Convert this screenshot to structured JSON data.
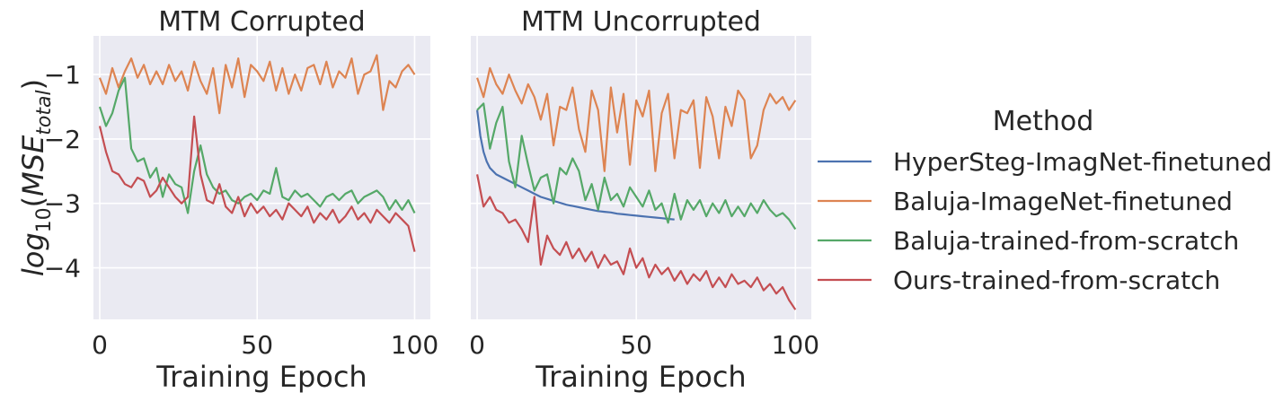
{
  "colors": {
    "HyperSteg-ImagNet-finetuned": "#4c72b0",
    "Baluja-ImageNet-finetuned": "#dd8452",
    "Baluja-trained-from-scratch": "#55a868",
    "Ours-trained-from-scratch": "#c44e52",
    "panel_bg": "#eaeaf2",
    "grid": "#ffffff",
    "text": "#262626"
  },
  "legend": {
    "title": "Method",
    "placement": "right",
    "entries": [
      "HyperSteg-ImagNet-finetuned",
      "Baluja-ImageNet-finetuned",
      "Baluja-trained-from-scratch",
      "Ours-trained-from-scratch"
    ]
  },
  "chart_data": [
    {
      "type": "line",
      "title": "MTM Corrupted",
      "xlabel": "Training Epoch",
      "ylabel": "log10(MSE_total)",
      "xlim": [
        -2,
        105
      ],
      "ylim": [
        -4.8,
        -0.4
      ],
      "xticks": [
        0,
        50,
        100
      ],
      "yticks": [
        -1,
        -2,
        -3,
        -4
      ],
      "grid": true,
      "series": [
        {
          "name": "Baluja-ImageNet-finetuned",
          "x": [
            0,
            2,
            4,
            6,
            8,
            10,
            12,
            14,
            16,
            18,
            20,
            22,
            24,
            26,
            28,
            30,
            32,
            34,
            36,
            38,
            40,
            42,
            44,
            46,
            48,
            50,
            52,
            54,
            56,
            58,
            60,
            62,
            64,
            66,
            68,
            70,
            72,
            74,
            76,
            78,
            80,
            82,
            84,
            86,
            88,
            90,
            92,
            94,
            96,
            98,
            100
          ],
          "y": [
            -1.05,
            -1.3,
            -0.9,
            -1.2,
            -0.95,
            -0.75,
            -1.05,
            -0.85,
            -1.15,
            -0.95,
            -1.15,
            -0.85,
            -1.1,
            -0.95,
            -1.25,
            -0.8,
            -1.1,
            -1.3,
            -0.9,
            -1.6,
            -0.85,
            -1.2,
            -0.75,
            -1.35,
            -0.85,
            -0.95,
            -1.1,
            -0.8,
            -1.25,
            -0.9,
            -1.3,
            -1.0,
            -1.25,
            -0.9,
            -0.85,
            -1.15,
            -0.8,
            -1.2,
            -0.95,
            -1.05,
            -0.75,
            -1.3,
            -1.0,
            -0.95,
            -0.7,
            -1.55,
            -1.1,
            -1.2,
            -0.95,
            -0.85,
            -1.0
          ]
        },
        {
          "name": "Baluja-trained-from-scratch",
          "x": [
            0,
            2,
            4,
            6,
            8,
            10,
            12,
            14,
            16,
            18,
            20,
            22,
            24,
            26,
            28,
            30,
            32,
            34,
            36,
            38,
            40,
            42,
            44,
            46,
            48,
            50,
            52,
            54,
            56,
            58,
            60,
            62,
            64,
            66,
            68,
            70,
            72,
            74,
            76,
            78,
            80,
            82,
            84,
            86,
            88,
            90,
            92,
            94,
            96,
            98,
            100
          ],
          "y": [
            -1.5,
            -1.8,
            -1.6,
            -1.25,
            -1.05,
            -2.15,
            -2.35,
            -2.3,
            -2.6,
            -2.45,
            -2.9,
            -2.55,
            -2.7,
            -2.75,
            -3.15,
            -2.5,
            -2.1,
            -2.55,
            -2.75,
            -2.85,
            -2.8,
            -2.95,
            -3.0,
            -2.9,
            -2.85,
            -2.95,
            -2.8,
            -2.85,
            -2.45,
            -2.9,
            -2.95,
            -2.8,
            -2.9,
            -2.85,
            -2.95,
            -3.05,
            -2.9,
            -2.85,
            -2.95,
            -2.85,
            -2.8,
            -3.0,
            -2.9,
            -2.85,
            -2.8,
            -2.9,
            -3.1,
            -2.95,
            -3.1,
            -2.95,
            -3.15
          ]
        },
        {
          "name": "Ours-trained-from-scratch",
          "x": [
            0,
            2,
            4,
            6,
            8,
            10,
            12,
            14,
            16,
            18,
            20,
            22,
            24,
            26,
            28,
            30,
            32,
            34,
            36,
            38,
            40,
            42,
            44,
            46,
            48,
            50,
            52,
            54,
            56,
            58,
            60,
            62,
            64,
            66,
            68,
            70,
            72,
            74,
            76,
            78,
            80,
            82,
            84,
            86,
            88,
            90,
            92,
            94,
            96,
            98,
            100
          ],
          "y": [
            -1.8,
            -2.2,
            -2.5,
            -2.55,
            -2.7,
            -2.75,
            -2.6,
            -2.65,
            -2.9,
            -2.8,
            -2.6,
            -2.75,
            -2.9,
            -3.0,
            -2.9,
            -1.65,
            -2.55,
            -2.95,
            -3.0,
            -2.7,
            -3.05,
            -3.15,
            -2.9,
            -3.2,
            -3.0,
            -3.15,
            -3.05,
            -3.2,
            -3.1,
            -3.25,
            -3.0,
            -3.1,
            -3.2,
            -3.05,
            -3.3,
            -3.15,
            -3.25,
            -3.1,
            -3.3,
            -3.2,
            -3.05,
            -3.25,
            -3.15,
            -3.3,
            -3.1,
            -3.2,
            -3.3,
            -3.15,
            -3.25,
            -3.35,
            -3.75
          ]
        }
      ]
    },
    {
      "type": "line",
      "title": "MTM Uncorrupted",
      "xlabel": "Training Epoch",
      "ylabel": "",
      "xlim": [
        -2,
        105
      ],
      "ylim": [
        -4.8,
        -0.4
      ],
      "xticks": [
        0,
        50,
        100
      ],
      "yticks": [
        -1,
        -2,
        -3,
        -4
      ],
      "grid": true,
      "series": [
        {
          "name": "HyperSteg-ImagNet-finetuned",
          "x": [
            0,
            1,
            2,
            3,
            4,
            6,
            8,
            10,
            12,
            14,
            16,
            18,
            20,
            22,
            24,
            26,
            28,
            30,
            32,
            34,
            36,
            38,
            40,
            42,
            44,
            46,
            48,
            50,
            52,
            54,
            56,
            58,
            60,
            62
          ],
          "y": [
            -1.55,
            -1.95,
            -2.2,
            -2.35,
            -2.45,
            -2.55,
            -2.6,
            -2.65,
            -2.7,
            -2.75,
            -2.8,
            -2.85,
            -2.9,
            -2.93,
            -2.96,
            -2.99,
            -3.02,
            -3.04,
            -3.06,
            -3.08,
            -3.1,
            -3.12,
            -3.13,
            -3.14,
            -3.16,
            -3.17,
            -3.18,
            -3.19,
            -3.2,
            -3.21,
            -3.22,
            -3.23,
            -3.24,
            -3.25
          ]
        },
        {
          "name": "Baluja-ImageNet-finetuned",
          "x": [
            0,
            2,
            4,
            6,
            8,
            10,
            12,
            14,
            16,
            18,
            20,
            22,
            24,
            26,
            28,
            30,
            32,
            34,
            36,
            38,
            40,
            42,
            44,
            46,
            48,
            50,
            52,
            54,
            56,
            58,
            60,
            62,
            64,
            66,
            68,
            70,
            72,
            74,
            76,
            78,
            80,
            82,
            84,
            86,
            88,
            90,
            92,
            94,
            96,
            98,
            100
          ],
          "y": [
            -1.05,
            -1.35,
            -0.9,
            -1.15,
            -1.3,
            -1.0,
            -1.25,
            -1.45,
            -1.15,
            -1.35,
            -1.7,
            -1.3,
            -2.1,
            -1.5,
            -1.55,
            -1.2,
            -1.85,
            -2.2,
            -1.25,
            -1.55,
            -2.5,
            -1.2,
            -1.9,
            -1.3,
            -2.4,
            -1.4,
            -1.65,
            -1.25,
            -2.5,
            -1.6,
            -1.3,
            -2.3,
            -1.55,
            -1.6,
            -1.4,
            -2.45,
            -1.35,
            -1.65,
            -2.3,
            -1.5,
            -1.8,
            -1.25,
            -1.4,
            -2.3,
            -2.1,
            -1.55,
            -1.3,
            -1.45,
            -1.35,
            -1.55,
            -1.4
          ]
        },
        {
          "name": "Baluja-trained-from-scratch",
          "x": [
            0,
            2,
            4,
            6,
            8,
            10,
            12,
            14,
            16,
            18,
            20,
            22,
            24,
            26,
            28,
            30,
            32,
            34,
            36,
            38,
            40,
            42,
            44,
            46,
            48,
            50,
            52,
            54,
            56,
            58,
            60,
            62,
            64,
            66,
            68,
            70,
            72,
            74,
            76,
            78,
            80,
            82,
            84,
            86,
            88,
            90,
            92,
            94,
            96,
            98,
            100
          ],
          "y": [
            -1.55,
            -1.45,
            -2.15,
            -1.75,
            -1.5,
            -2.35,
            -2.75,
            -1.95,
            -2.4,
            -2.8,
            -2.6,
            -2.55,
            -3.0,
            -2.45,
            -2.55,
            -2.3,
            -2.5,
            -2.95,
            -2.7,
            -3.1,
            -2.6,
            -2.95,
            -2.85,
            -3.05,
            -2.75,
            -2.9,
            -3.05,
            -2.8,
            -3.1,
            -3.0,
            -3.3,
            -2.85,
            -3.25,
            -2.95,
            -3.1,
            -2.95,
            -3.2,
            -3.0,
            -3.15,
            -2.95,
            -3.2,
            -3.05,
            -3.2,
            -3.0,
            -3.15,
            -2.95,
            -3.1,
            -3.2,
            -3.15,
            -3.25,
            -3.4
          ]
        },
        {
          "name": "Ours-trained-from-scratch",
          "x": [
            0,
            2,
            4,
            6,
            8,
            10,
            12,
            14,
            16,
            18,
            20,
            22,
            24,
            26,
            28,
            30,
            32,
            34,
            36,
            38,
            40,
            42,
            44,
            46,
            48,
            50,
            52,
            54,
            56,
            58,
            60,
            62,
            64,
            66,
            68,
            70,
            72,
            74,
            76,
            78,
            80,
            82,
            84,
            86,
            88,
            90,
            92,
            94,
            96,
            98,
            100
          ],
          "y": [
            -2.55,
            -3.05,
            -2.9,
            -3.1,
            -3.15,
            -3.3,
            -3.25,
            -3.4,
            -3.6,
            -2.9,
            -3.95,
            -3.5,
            -3.7,
            -3.8,
            -3.6,
            -3.85,
            -3.7,
            -3.9,
            -3.75,
            -4.0,
            -3.8,
            -3.95,
            -3.9,
            -4.1,
            -3.7,
            -4.0,
            -3.85,
            -4.15,
            -3.95,
            -4.1,
            -4.0,
            -4.2,
            -4.05,
            -4.25,
            -4.1,
            -4.2,
            -4.05,
            -4.3,
            -4.15,
            -4.3,
            -4.1,
            -4.25,
            -4.2,
            -4.3,
            -4.15,
            -4.35,
            -4.25,
            -4.4,
            -4.3,
            -4.5,
            -4.65
          ]
        }
      ]
    }
  ]
}
